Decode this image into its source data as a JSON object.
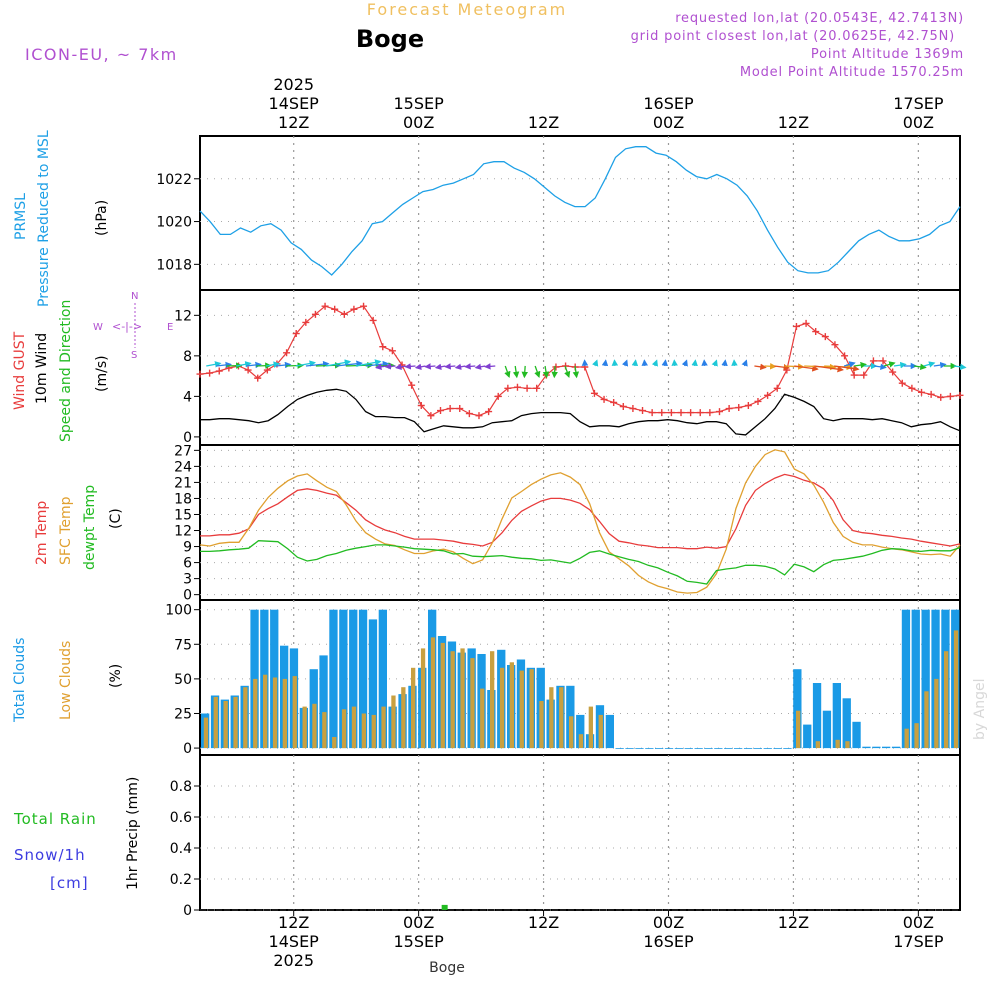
{
  "header": {
    "title": "Forecast Meteogram",
    "location": "Boge",
    "model": "ICON-EU, ~ 7km",
    "requested": "requested lon,lat (20.0543E, 42.7413N)",
    "grid_point": "grid point closest lon,lat (20.0625E, 42.75N)",
    "point_altitude": "Point Altitude 1369m",
    "model_altitude": "Model Point Altitude 1570.25m",
    "footer_location": "Boge",
    "credit": "by Angel"
  },
  "colors": {
    "pressure": "#1ea0e6",
    "gust": "#e83c3c",
    "wind": "#000000",
    "speed_dir": "#22bb22",
    "compass": "#b050d0",
    "temp_2m": "#e83c3c",
    "temp_sfc": "#e0a030",
    "dewpoint": "#22bb22",
    "total_clouds": "#1a9ae6",
    "low_clouds": "#c8a040",
    "rain": "#22bb22",
    "snow": "#3c3ce0",
    "title_color": "#f0c060",
    "meta_color": "#b050d0"
  },
  "chart_data": {
    "type": "meteogram",
    "time_axis": {
      "start_hours_before_2025-09-14T12Z": 9,
      "end_hours_after_2025-09-17T00Z": 4,
      "top_labels": [
        {
          "lines": [
            "2025",
            "14SEP",
            "12Z"
          ],
          "hours": 9
        },
        {
          "lines": [
            "15SEP",
            "00Z"
          ],
          "hours": 21
        },
        {
          "lines": [
            "12Z"
          ],
          "hours": 33
        },
        {
          "lines": [
            "16SEP",
            "00Z"
          ],
          "hours": 45
        },
        {
          "lines": [
            "12Z"
          ],
          "hours": 57
        },
        {
          "lines": [
            "17SEP",
            "00Z"
          ],
          "hours": 69
        }
      ],
      "bottom_labels": [
        {
          "lines": [
            "12Z",
            "14SEP",
            "2025"
          ],
          "hours": 9
        },
        {
          "lines": [
            "00Z",
            "15SEP"
          ],
          "hours": 21
        },
        {
          "lines": [
            "12Z"
          ],
          "hours": 33
        },
        {
          "lines": [
            "00Z",
            "16SEP"
          ],
          "hours": 45
        },
        {
          "lines": [
            "12Z"
          ],
          "hours": 57
        },
        {
          "lines": [
            "00Z",
            "17SEP"
          ],
          "hours": 69
        }
      ]
    },
    "panels": {
      "pressure": {
        "labels": [
          "PRMSL",
          "Pressure Reduced to MSL"
        ],
        "unit": "(hPa)",
        "ylim": [
          1016.8,
          1024
        ],
        "yticks": [
          1018,
          1020,
          1022
        ],
        "series": [
          {
            "name": "PRMSL",
            "values": [
              1020.5,
              1020.0,
              1019.4,
              1019.4,
              1019.7,
              1019.5,
              1019.8,
              1019.9,
              1019.6,
              1019.0,
              1018.7,
              1018.2,
              1017.9,
              1017.5,
              1018.0,
              1018.6,
              1019.1,
              1019.9,
              1020.0,
              1020.4,
              1020.8,
              1021.1,
              1021.4,
              1021.5,
              1021.7,
              1021.8,
              1022.0,
              1022.2,
              1022.7,
              1022.8,
              1022.8,
              1022.5,
              1022.3,
              1022.0,
              1021.6,
              1021.2,
              1020.9,
              1020.7,
              1020.7,
              1021.1,
              1022.0,
              1023.0,
              1023.4,
              1023.5,
              1023.5,
              1023.2,
              1023.1,
              1022.8,
              1022.4,
              1022.1,
              1022.0,
              1022.2,
              1022.0,
              1021.7,
              1021.2,
              1020.5,
              1019.6,
              1018.8,
              1018.1,
              1017.7,
              1017.6,
              1017.6,
              1017.7,
              1018.1,
              1018.6,
              1019.1,
              1019.4,
              1019.6,
              1019.3,
              1019.1,
              1019.1,
              1019.2,
              1019.4,
              1019.8,
              1020.0,
              1020.7
            ]
          }
        ]
      },
      "wind": {
        "labels": [
          "Wind GUST",
          "10m Wind",
          "Speed and Direction"
        ],
        "unit": "(m/s)",
        "ylim": [
          -0.8,
          14.5
        ],
        "yticks": [
          0,
          4,
          8,
          12
        ],
        "compass": {
          "n": "N",
          "s": "S",
          "w": "W",
          "e": "E"
        },
        "gust": [
          6.2,
          6.3,
          6.5,
          6.8,
          7.0,
          6.6,
          5.8,
          6.6,
          7.2,
          8.3,
          10.2,
          11.3,
          12.1,
          12.9,
          12.6,
          12.1,
          12.6,
          12.9,
          11.5,
          8.9,
          8.5,
          7.1,
          5.1,
          3.1,
          2.1,
          2.6,
          2.8,
          2.8,
          2.3,
          2.1,
          2.5,
          4.0,
          4.8,
          4.9,
          4.8,
          4.8,
          6.1,
          6.9,
          7.0,
          6.9,
          6.9,
          4.3,
          3.7,
          3.4,
          3.0,
          2.8,
          2.6,
          2.4,
          2.4,
          2.4,
          2.4,
          2.4,
          2.4,
          2.4,
          2.5,
          2.8,
          2.9,
          3.1,
          3.5,
          4.1,
          4.8,
          6.6,
          10.9,
          11.2,
          10.4,
          9.9,
          9.1,
          8.0,
          6.1,
          6.1,
          7.5,
          7.5,
          6.4,
          5.3,
          4.8,
          4.4,
          4.2,
          3.9,
          4.0,
          4.1
        ],
        "wind": [
          1.7,
          1.7,
          1.8,
          1.8,
          1.7,
          1.6,
          1.4,
          1.6,
          2.2,
          3.0,
          3.7,
          4.1,
          4.4,
          4.6,
          4.7,
          4.5,
          3.7,
          2.5,
          2.0,
          2.0,
          1.9,
          1.9,
          1.5,
          0.5,
          0.8,
          1.1,
          1.0,
          0.9,
          0.9,
          1.0,
          1.4,
          1.5,
          1.6,
          2.1,
          2.3,
          2.4,
          2.4,
          2.4,
          2.3,
          1.5,
          1.0,
          1.1,
          1.1,
          1.0,
          1.3,
          1.5,
          1.6,
          1.6,
          1.7,
          1.6,
          1.4,
          1.3,
          1.5,
          1.5,
          1.3,
          0.3,
          0.2,
          1.0,
          1.8,
          2.8,
          4.2,
          3.9,
          3.5,
          3.0,
          1.8,
          1.6,
          1.8,
          1.8,
          1.8,
          1.7,
          1.8,
          1.6,
          1.4,
          1.0,
          1.2,
          1.3,
          1.5,
          1.0,
          0.6
        ]
      },
      "temperature": {
        "labels": [
          "2m Temp",
          "SFC Temp",
          "dewpt Temp"
        ],
        "unit": "(C)",
        "ylim": [
          -1,
          28
        ],
        "yticks": [
          0,
          3,
          6,
          9,
          12,
          15,
          18,
          21,
          24,
          27
        ],
        "series": [
          {
            "name": "2m Temp",
            "values": [
              11.0,
              11.0,
              11.2,
              11.2,
              11.5,
              12.3,
              15.0,
              16.1,
              17.0,
              18.3,
              19.5,
              19.8,
              19.5,
              19.0,
              18.6,
              17.2,
              15.8,
              14.0,
              12.9,
              12.1,
              11.6,
              10.9,
              10.4,
              10.4,
              10.4,
              10.2,
              10.0,
              9.6,
              9.4,
              9.1,
              9.8,
              11.6,
              13.9,
              15.6,
              16.6,
              17.5,
              18.0,
              18.0,
              17.7,
              17.1,
              15.9,
              13.7,
              11.4,
              10.0,
              9.7,
              9.3,
              9.1,
              8.8,
              8.8,
              8.8,
              8.6,
              8.6,
              8.9,
              8.7,
              9.0,
              12.3,
              16.7,
              19.5,
              20.8,
              21.8,
              22.5,
              22.1,
              21.4,
              20.9,
              19.8,
              17.6,
              14.0,
              12.0,
              11.6,
              11.4,
              11.1,
              10.9,
              10.6,
              10.4,
              10.0,
              9.7,
              9.4,
              9.1,
              9.5
            ]
          },
          {
            "name": "SFC Temp",
            "values": [
              9.3,
              9.1,
              9.6,
              9.8,
              9.8,
              12.4,
              15.8,
              18.2,
              19.9,
              21.3,
              22.2,
              22.6,
              21.3,
              20.1,
              19.3,
              16.8,
              13.8,
              11.6,
              10.4,
              9.5,
              9.2,
              8.4,
              7.7,
              7.7,
              8.2,
              8.5,
              8.0,
              6.8,
              5.8,
              6.5,
              9.7,
              14.2,
              18.1,
              19.3,
              20.6,
              21.6,
              22.4,
              22.8,
              22.0,
              20.6,
              17.0,
              11.6,
              8.0,
              6.7,
              5.4,
              3.6,
              2.4,
              1.6,
              1.1,
              0.5,
              0.3,
              0.4,
              1.4,
              3.9,
              8.5,
              16.1,
              20.9,
              24.0,
              26.2,
              27.1,
              26.7,
              23.5,
              22.6,
              20.5,
              17.3,
              13.5,
              10.9,
              9.8,
              9.3,
              9.3,
              8.9,
              8.6,
              8.4,
              8.0,
              7.6,
              7.5,
              7.6,
              7.2,
              9.3
            ]
          },
          {
            "name": "dewpt Temp",
            "values": [
              8.1,
              8.1,
              8.2,
              8.4,
              8.5,
              8.7,
              10.1,
              10.0,
              9.9,
              8.6,
              7.0,
              6.3,
              6.6,
              7.3,
              7.7,
              8.3,
              8.7,
              9.0,
              9.3,
              9.3,
              9.1,
              8.9,
              8.6,
              8.5,
              8.4,
              8.2,
              7.6,
              7.7,
              7.2,
              7.1,
              7.2,
              7.3,
              7.0,
              6.8,
              6.7,
              6.4,
              6.5,
              6.2,
              5.9,
              6.8,
              7.9,
              8.2,
              7.6,
              7.1,
              6.6,
              6.2,
              5.5,
              5.0,
              4.2,
              3.5,
              2.5,
              2.3,
              2.0,
              4.5,
              4.8,
              5.0,
              5.5,
              5.5,
              5.3,
              4.8,
              3.7,
              5.7,
              5.2,
              4.3,
              5.6,
              6.4,
              6.6,
              6.9,
              7.2,
              7.7,
              8.3,
              8.6,
              8.5,
              8.2,
              8.1,
              8.3,
              8.2,
              8.2,
              8.8
            ]
          }
        ]
      },
      "clouds": {
        "labels": [
          "Total Clouds",
          "Low Clouds"
        ],
        "unit": "(%)",
        "ylim": [
          -5,
          107
        ],
        "yticks": [
          0,
          25,
          50,
          75,
          100
        ],
        "series": [
          {
            "name": "Total Clouds",
            "values": [
              25,
              38,
              35,
              38,
              45,
              100,
              100,
              100,
              74,
              72,
              29,
              57,
              67,
              100,
              100,
              100,
              100,
              93,
              100,
              30,
              39,
              45,
              58,
              100,
              81,
              77,
              69,
              72,
              68,
              42,
              71,
              60,
              64,
              58,
              58,
              35,
              45,
              45,
              24,
              10,
              31,
              24,
              0,
              0,
              0,
              0,
              0,
              0,
              0,
              0,
              0,
              0,
              0,
              0,
              0,
              0,
              0,
              0,
              0,
              0,
              57,
              17,
              47,
              27,
              47,
              36,
              19,
              1,
              1,
              1,
              1,
              100,
              100,
              100,
              100,
              100,
              100
            ]
          },
          {
            "name": "Low Clouds",
            "values": [
              22,
              37,
              34,
              37,
              44,
              50,
              53,
              51,
              50,
              52,
              30,
              32,
              26,
              8,
              28,
              30,
              25,
              24,
              30,
              38,
              44,
              58,
              72,
              80,
              76,
              70,
              72,
              65,
              43,
              70,
              58,
              62,
              56,
              57,
              34,
              44,
              44,
              23,
              10,
              30,
              24,
              0,
              0,
              0,
              0,
              0,
              0,
              0,
              0,
              0,
              0,
              0,
              0,
              0,
              0,
              0,
              0,
              0,
              0,
              0,
              27,
              0,
              5,
              0,
              6,
              5,
              0,
              0,
              0,
              0,
              0,
              14,
              18,
              41,
              50,
              70,
              85
            ]
          }
        ]
      },
      "precip": {
        "labels": [
          "Total Rain",
          "Snow/1h",
          "[cm]"
        ],
        "unit": "1hr Precip (mm)",
        "ylim": [
          0,
          1.0
        ],
        "yticks": [
          0,
          0.2,
          0.4,
          0.6,
          0.8
        ],
        "series": [
          {
            "name": "Total Rain",
            "events": [
              {
                "hours": 22,
                "value": 0.02
              }
            ]
          }
        ]
      }
    }
  }
}
